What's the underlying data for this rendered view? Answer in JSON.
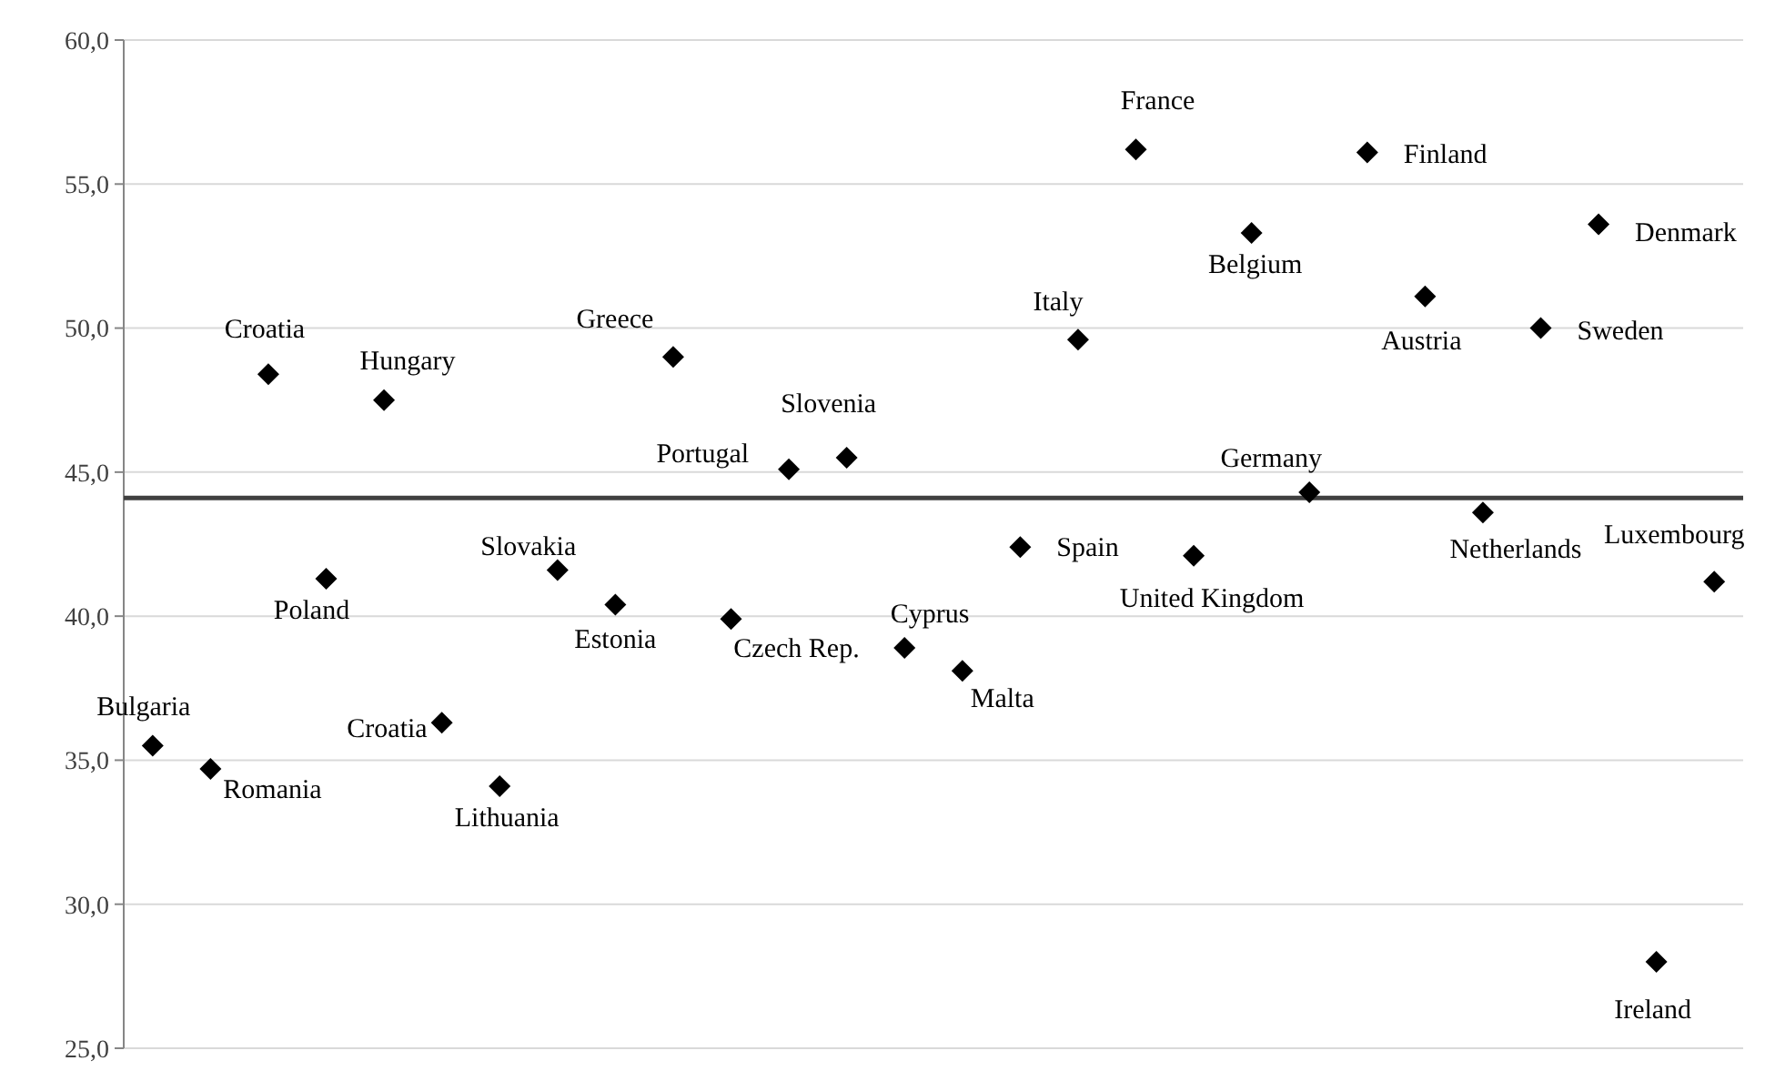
{
  "chart_data": {
    "type": "scatter",
    "categories": [
      null,
      null,
      null,
      null,
      null,
      null,
      null,
      null,
      null,
      null,
      null,
      null,
      null,
      null,
      null,
      null,
      null,
      null,
      null,
      null,
      null,
      null,
      null,
      null,
      null,
      null,
      null,
      null
    ],
    "values": [
      35.5,
      34.7,
      48.4,
      41.3,
      47.5,
      36.3,
      34.1,
      41.6,
      40.4,
      49.0,
      39.9,
      45.1,
      45.5,
      38.9,
      38.1,
      42.4,
      49.6,
      56.2,
      42.1,
      53.3,
      44.3,
      56.1,
      51.1,
      43.6,
      50.0,
      53.6,
      28.0,
      41.2
    ],
    "color": "#000000",
    "marker": "diamond",
    "ylim": [
      25,
      60
    ],
    "yticks": [
      {
        "value": 25,
        "label": "25,0"
      },
      {
        "value": 30,
        "label": "30,0"
      },
      {
        "value": 35,
        "label": "35,0"
      },
      {
        "value": 40,
        "label": "40,0"
      },
      {
        "value": 45,
        "label": "45,0"
      },
      {
        "value": 50,
        "label": "50,0"
      },
      {
        "value": 55,
        "label": "55,0"
      },
      {
        "value": 60,
        "label": "60,0"
      }
    ],
    "grid": "y",
    "ref_lines": [
      {
        "axis": "y",
        "value": 44.1,
        "color": "#404040"
      }
    ],
    "annotations": [
      "Bulgaria",
      "Romania",
      "Croatia",
      "Poland",
      "Hungary",
      "Croatia",
      "Lithuania",
      "Slovakia",
      "Estonia",
      "Greece",
      "Czech Rep.",
      "Portugal",
      "Slovenia",
      "Cyprus",
      "Malta",
      "Spain",
      "Italy",
      "France",
      "United Kingdom",
      "Belgium",
      "Germany",
      "Finland",
      "Austria",
      "Netherlands",
      "Sweden",
      "Denmark",
      "Ireland",
      "Luxembourg"
    ]
  }
}
